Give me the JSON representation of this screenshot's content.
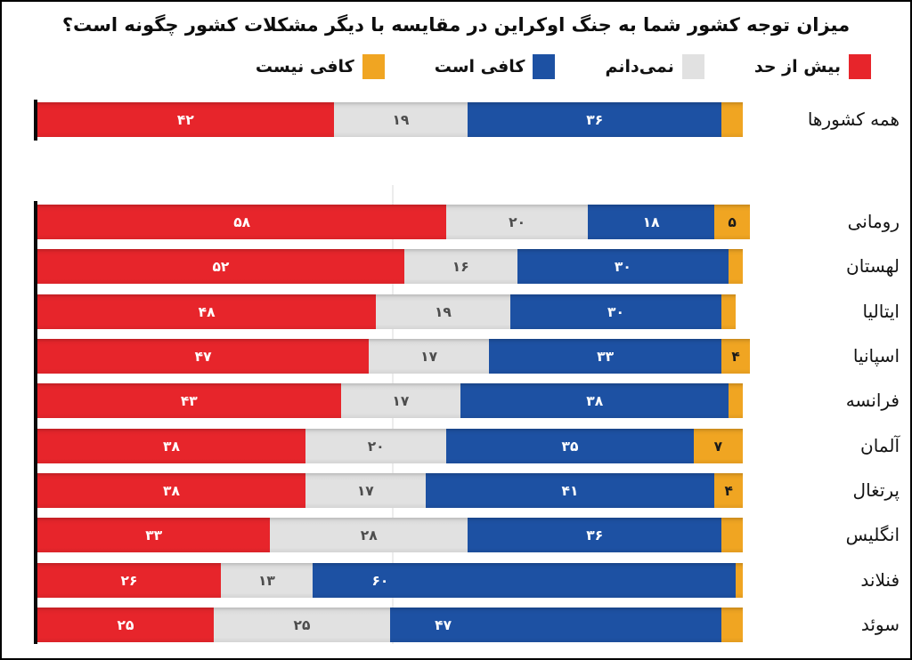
{
  "chart_data": {
    "type": "bar",
    "orientation": "horizontal",
    "stacked": true,
    "title": "میزان توجه کشور شما به جنگ اوکراین در مقایسه با دیگر مشکلات کشور چگونه است؟",
    "xlabel": "",
    "ylabel": "",
    "axis_range": [
      0,
      101
    ],
    "max_total": 101,
    "grid": "single faint vertical line near value 50",
    "legend_position": "top, right-aligned, right-to-left",
    "legend": [
      {
        "key": "too-much",
        "label": "بیش از حد",
        "color": "#e7252b",
        "text_color": "#ffffff"
      },
      {
        "key": "dont-know",
        "label": "نمی‌دانم",
        "color": "#e1e1e1",
        "text_color": "#4d4d4d"
      },
      {
        "key": "enough",
        "label": "کافی است",
        "color": "#1d51a3",
        "text_color": "#ffffff"
      },
      {
        "key": "not-enough",
        "label": "کافی نیست",
        "color": "#f0a522",
        "text_color": "#1a1a1a"
      }
    ],
    "rows": [
      {
        "label": "همه کشورها",
        "values": [
          42,
          19,
          36,
          3
        ],
        "display": [
          "۴۲",
          "۱۹",
          "۳۶",
          ""
        ]
      },
      {
        "label": "رومانی",
        "values": [
          58,
          20,
          18,
          5
        ],
        "display": [
          "۵۸",
          "۲۰",
          "۱۸",
          "۵"
        ]
      },
      {
        "label": "لهستان",
        "values": [
          52,
          16,
          30,
          2
        ],
        "display": [
          "۵۲",
          "۱۶",
          "۳۰",
          ""
        ]
      },
      {
        "label": "ایتالیا",
        "values": [
          48,
          19,
          30,
          2
        ],
        "display": [
          "۴۸",
          "۱۹",
          "۳۰",
          ""
        ]
      },
      {
        "label": "اسپانیا",
        "values": [
          47,
          17,
          33,
          4
        ],
        "display": [
          "۴۷",
          "۱۷",
          "۳۳",
          "۴"
        ]
      },
      {
        "label": "فرانسه",
        "values": [
          43,
          17,
          38,
          2
        ],
        "display": [
          "۴۳",
          "۱۷",
          "۳۸",
          ""
        ]
      },
      {
        "label": "آلمان",
        "values": [
          38,
          20,
          35,
          7
        ],
        "display": [
          "۳۸",
          "۲۰",
          "۳۵",
          "۷"
        ]
      },
      {
        "label": "پرتغال",
        "values": [
          38,
          17,
          41,
          4
        ],
        "display": [
          "۳۸",
          "۱۷",
          "۴۱",
          "۴"
        ]
      },
      {
        "label": "انگلیس",
        "values": [
          33,
          28,
          36,
          3
        ],
        "display": [
          "۳۳",
          "۲۸",
          "۳۶",
          ""
        ]
      },
      {
        "label": "فنلاند",
        "values": [
          26,
          13,
          60,
          1
        ],
        "display": [
          "۲۶",
          "۱۳",
          "۶۰",
          ""
        ]
      },
      {
        "label": "سوئد",
        "values": [
          25,
          25,
          47,
          3
        ],
        "display": [
          "۲۵",
          "۲۵",
          "۴۷",
          ""
        ]
      }
    ]
  }
}
